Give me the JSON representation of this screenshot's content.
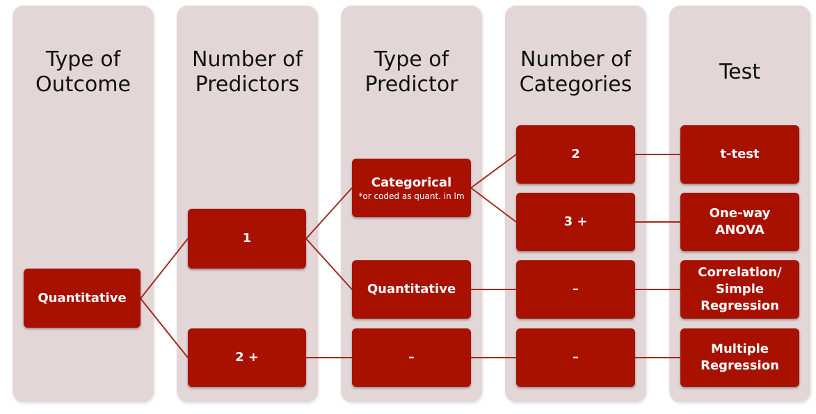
{
  "columns": [
    {
      "title_lines": [
        "Type of",
        "Outcome"
      ]
    },
    {
      "title_lines": [
        "Number of",
        "Predictors"
      ]
    },
    {
      "title_lines": [
        "Type of",
        "Predictor"
      ]
    },
    {
      "title_lines": [
        "Number of",
        "Categories"
      ]
    },
    {
      "title_lines": [
        "Test"
      ]
    }
  ],
  "nodes": {
    "outcome_quantitative": "Quantitative",
    "predictors_1": "1",
    "predictors_2plus": "2 +",
    "predictor_categorical": "Categorical",
    "predictor_categorical_note": "*or coded as quant. in lm",
    "predictor_quantitative": "Quantitative",
    "predictor_dash": "–",
    "categories_2": "2",
    "categories_3plus": "3 +",
    "categories_dash_1": "–",
    "categories_dash_2": "–",
    "test_ttest": "t-test",
    "test_anova_lines": [
      "One-way",
      "ANOVA"
    ],
    "test_correlation_lines": [
      "Correlation/",
      "Simple",
      "Regression"
    ],
    "test_multiple_lines": [
      "Multiple",
      "Regression"
    ]
  },
  "colors": {
    "column_bg": "#e3d6d6",
    "box_bg": "#a81100",
    "connector": "#a02a1a"
  }
}
